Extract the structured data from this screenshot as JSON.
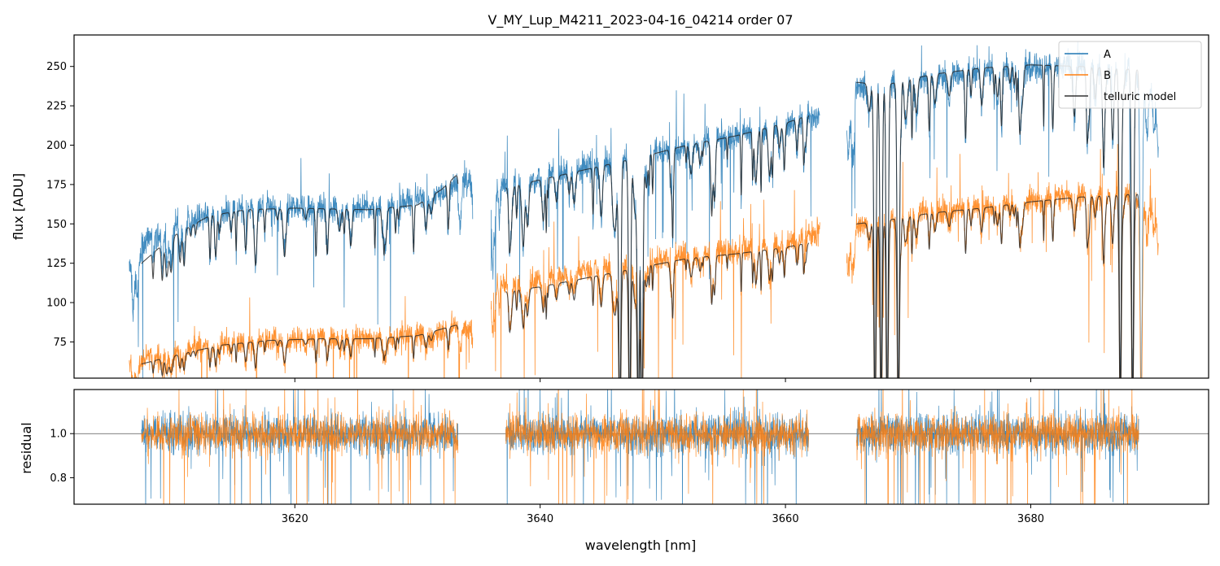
{
  "chart_data": {
    "type": "line",
    "title": "V_MY_Lup_M4211_2023-04-16_04214  order 07",
    "xlabel": "wavelength [nm]",
    "xlim": [
      3602.0,
      3694.5
    ],
    "xticks": [
      3620,
      3640,
      3660,
      3680
    ],
    "xtick_labels": [
      "3620",
      "3640",
      "3660",
      "3680"
    ],
    "colors": {
      "A": "#1f77b4",
      "B": "#ff7f0e",
      "model": "#222222",
      "ref": "#555555"
    },
    "panels": [
      {
        "name": "flux",
        "ylabel": "flux [ADU]",
        "ylim": [
          52,
          270
        ],
        "yticks": [
          75,
          100,
          125,
          150,
          175,
          200,
          225,
          250
        ],
        "ytick_labels": [
          "75",
          "100",
          "125",
          "150",
          "175",
          "200",
          "225",
          "250"
        ],
        "legend": {
          "position": "top-right",
          "entries": [
            "A",
            "B",
            "telluric model"
          ]
        },
        "segments": [
          {
            "range": [
              3606.5,
              3634.5
            ],
            "A_knots": [
              [
                3606.5,
                122
              ],
              [
                3608,
                140
              ],
              [
                3610,
                150
              ],
              [
                3612,
                155
              ],
              [
                3614,
                158
              ],
              [
                3616,
                160
              ],
              [
                3620,
                161
              ],
              [
                3624,
                160
              ],
              [
                3628,
                162
              ],
              [
                3632,
                170
              ],
              [
                3634.5,
                180
              ]
            ],
            "B_knots": [
              [
                3606.5,
                62
              ],
              [
                3608,
                65
              ],
              [
                3610,
                69
              ],
              [
                3614,
                74
              ],
              [
                3618,
                76
              ],
              [
                3622,
                77
              ],
              [
                3626,
                77
              ],
              [
                3630,
                79
              ],
              [
                3634.5,
                85
              ]
            ],
            "model_A": [
              [
                3607.5,
                125
              ],
              [
                3610,
                142
              ],
              [
                3613,
                155
              ],
              [
                3616,
                159
              ],
              [
                3620,
                160
              ],
              [
                3626,
                159
              ],
              [
                3630,
                162
              ],
              [
                3632,
                172
              ],
              [
                3633.3,
                182
              ]
            ],
            "model_B": [
              [
                3607.5,
                61
              ],
              [
                3610,
                66
              ],
              [
                3614,
                73
              ],
              [
                3618,
                76
              ],
              [
                3622,
                77
              ],
              [
                3626,
                77
              ],
              [
                3630,
                79
              ],
              [
                3633.3,
                86
              ]
            ]
          },
          {
            "range": [
              3636.0,
              3662.8
            ],
            "A_knots": [
              [
                3636,
                172
              ],
              [
                3640,
                180
              ],
              [
                3644,
                186
              ],
              [
                3648,
                192
              ],
              [
                3652,
                200
              ],
              [
                3656,
                205
              ],
              [
                3660,
                212
              ],
              [
                3662.8,
                220
              ]
            ],
            "B_knots": [
              [
                3636,
                110
              ],
              [
                3640,
                115
              ],
              [
                3644,
                120
              ],
              [
                3648,
                125
              ],
              [
                3652,
                130
              ],
              [
                3656,
                133
              ],
              [
                3660,
                138
              ],
              [
                3662.8,
                145
              ]
            ],
            "model_A": [
              [
                3637.2,
                173
              ],
              [
                3640,
                178
              ],
              [
                3644,
                185
              ],
              [
                3648,
                192
              ],
              [
                3652,
                200
              ],
              [
                3656,
                206
              ],
              [
                3660,
                214
              ],
              [
                3661.9,
                219
              ]
            ],
            "model_B": [
              [
                3637.2,
                107
              ],
              [
                3640,
                110
              ],
              [
                3644,
                116
              ],
              [
                3648,
                122
              ],
              [
                3652,
                128
              ],
              [
                3656,
                131
              ],
              [
                3660,
                135
              ],
              [
                3661.9,
                138
              ]
            ]
          },
          {
            "range": [
              3665.0,
              3690.4
            ],
            "A_knots": [
              [
                3665,
                236
              ],
              [
                3668,
                238
              ],
              [
                3672,
                243
              ],
              [
                3676,
                247
              ],
              [
                3680,
                250
              ],
              [
                3684,
                250
              ],
              [
                3688,
                248
              ],
              [
                3690.4,
                230
              ]
            ],
            "B_knots": [
              [
                3665,
                148
              ],
              [
                3668,
                152
              ],
              [
                3672,
                158
              ],
              [
                3676,
                161
              ],
              [
                3680,
                165
              ],
              [
                3684,
                168
              ],
              [
                3688,
                170
              ],
              [
                3690.4,
                158
              ]
            ],
            "model_A": [
              [
                3665.8,
                240
              ],
              [
                3668,
                238
              ],
              [
                3672,
                245
              ],
              [
                3676,
                249
              ],
              [
                3680,
                251
              ],
              [
                3684,
                250
              ],
              [
                3688.8,
                248
              ]
            ],
            "model_B": [
              [
                3665.8,
                150
              ],
              [
                3668,
                152
              ],
              [
                3672,
                157
              ],
              [
                3676,
                160
              ],
              [
                3680,
                164
              ],
              [
                3684,
                167
              ],
              [
                3688.8,
                169
              ]
            ]
          }
        ],
        "deep_lines": [
          3646.5,
          3647.3,
          3648.0,
          3648.3,
          3667.3,
          3667.8,
          3668.3,
          3669.2,
          3687.3,
          3688.3,
          3689.0
        ]
      },
      {
        "name": "residual",
        "ylabel": "residual",
        "ylim": [
          0.68,
          1.2
        ],
        "yticks": [
          0.8,
          1.0
        ],
        "ytick_labels": [
          "0.8",
          "1.0"
        ],
        "reference_line": 1.0,
        "segments": [
          [
            3607.5,
            3633.3
          ],
          [
            3637.2,
            3661.9
          ],
          [
            3665.8,
            3688.8
          ]
        ]
      }
    ]
  }
}
